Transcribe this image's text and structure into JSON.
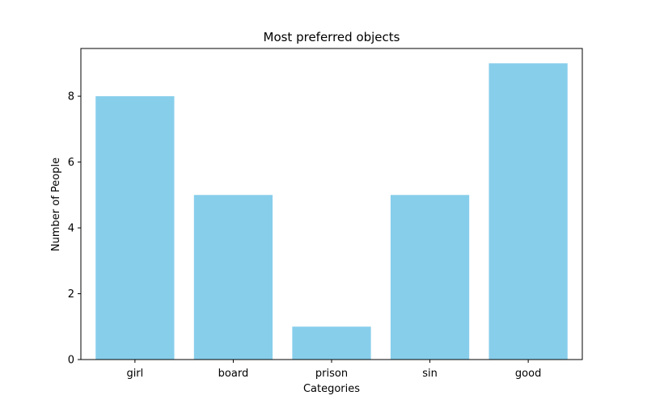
{
  "chart_data": {
    "type": "bar",
    "title": "Most preferred objects",
    "xlabel": "Categories",
    "ylabel": "Number of People",
    "categories": [
      "girl",
      "board",
      "prison",
      "sin",
      "good"
    ],
    "values": [
      8,
      5,
      1,
      5,
      9
    ],
    "ylim": [
      0,
      9.45
    ],
    "yticks": [
      0,
      2,
      4,
      6,
      8
    ],
    "bar_color": "#87CEEB",
    "grid": false,
    "legend": "none"
  }
}
